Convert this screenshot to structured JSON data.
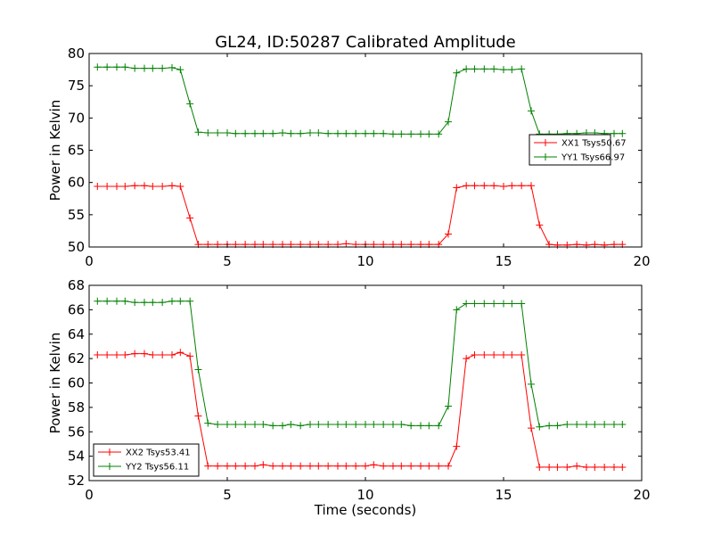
{
  "figure": {
    "title": "GL24, ID:50287 Calibrated Amplitude"
  },
  "colors": {
    "xx": "#ff0000",
    "yy": "#008000",
    "background": "#ffffff",
    "axes": "#000000"
  },
  "chart_data": [
    {
      "type": "line",
      "title": "GL24, ID:50287 Calibrated Amplitude",
      "xlabel": "",
      "ylabel": "Power in Kelvin",
      "xlim": [
        0,
        20
      ],
      "ylim": [
        50,
        80
      ],
      "xticks": [
        0,
        5,
        10,
        15,
        20
      ],
      "yticks": [
        50,
        55,
        60,
        65,
        70,
        75,
        80
      ],
      "grid": false,
      "legend_position": "center-right",
      "x": [
        0.3,
        0.65,
        1.0,
        1.3,
        1.65,
        2.0,
        2.3,
        2.65,
        3.0,
        3.3,
        3.65,
        3.95,
        4.3,
        4.65,
        5.0,
        5.3,
        5.65,
        6.0,
        6.3,
        6.65,
        7.0,
        7.3,
        7.65,
        8.0,
        8.3,
        8.65,
        9.0,
        9.3,
        9.65,
        10.0,
        10.3,
        10.65,
        11.0,
        11.3,
        11.65,
        12.0,
        12.3,
        12.65,
        13.0,
        13.3,
        13.65,
        13.95,
        14.3,
        14.65,
        15.0,
        15.3,
        15.65,
        16.0,
        16.3,
        16.65,
        16.95,
        17.3,
        17.65,
        18.0,
        18.3,
        18.65,
        19.0,
        19.3
      ],
      "series": [
        {
          "name": "XX1 Tsys50.67",
          "color": "#ff0000",
          "values": [
            59.4,
            59.4,
            59.4,
            59.4,
            59.5,
            59.5,
            59.4,
            59.4,
            59.5,
            59.4,
            54.5,
            50.4,
            50.4,
            50.4,
            50.4,
            50.4,
            50.4,
            50.4,
            50.4,
            50.4,
            50.4,
            50.4,
            50.4,
            50.4,
            50.4,
            50.4,
            50.4,
            50.5,
            50.4,
            50.4,
            50.4,
            50.4,
            50.4,
            50.4,
            50.4,
            50.4,
            50.4,
            50.4,
            52.0,
            59.2,
            59.5,
            59.5,
            59.5,
            59.5,
            59.4,
            59.5,
            59.5,
            59.5,
            53.4,
            50.4,
            50.3,
            50.3,
            50.4,
            50.3,
            50.4,
            50.3,
            50.4,
            50.4
          ]
        },
        {
          "name": "YY1 Tsys66.97",
          "color": "#008000",
          "values": [
            77.9,
            77.9,
            77.9,
            77.9,
            77.7,
            77.7,
            77.7,
            77.7,
            77.8,
            77.5,
            72.2,
            67.8,
            67.7,
            67.7,
            67.7,
            67.6,
            67.6,
            67.6,
            67.6,
            67.6,
            67.7,
            67.6,
            67.6,
            67.7,
            67.7,
            67.6,
            67.6,
            67.6,
            67.6,
            67.6,
            67.6,
            67.6,
            67.5,
            67.5,
            67.5,
            67.5,
            67.5,
            67.5,
            69.4,
            77.0,
            77.6,
            77.6,
            77.6,
            77.6,
            77.5,
            77.5,
            77.6,
            71.1,
            67.5,
            67.5,
            67.5,
            67.6,
            67.6,
            67.7,
            67.7,
            67.6,
            67.6,
            67.6
          ]
        }
      ]
    },
    {
      "type": "line",
      "title": "",
      "xlabel": "Time (seconds)",
      "ylabel": "Power in Kelvin",
      "xlim": [
        0,
        20
      ],
      "ylim": [
        52,
        68
      ],
      "xticks": [
        0,
        5,
        10,
        15,
        20
      ],
      "yticks": [
        52,
        54,
        56,
        58,
        60,
        62,
        64,
        66,
        68
      ],
      "grid": false,
      "legend_position": "lower-left",
      "x": [
        0.3,
        0.65,
        1.0,
        1.3,
        1.65,
        2.0,
        2.3,
        2.65,
        3.0,
        3.3,
        3.65,
        3.95,
        4.3,
        4.65,
        5.0,
        5.3,
        5.65,
        6.0,
        6.3,
        6.65,
        7.0,
        7.3,
        7.65,
        8.0,
        8.3,
        8.65,
        9.0,
        9.3,
        9.65,
        10.0,
        10.3,
        10.65,
        11.0,
        11.3,
        11.65,
        12.0,
        12.3,
        12.65,
        13.0,
        13.3,
        13.65,
        13.95,
        14.3,
        14.65,
        15.0,
        15.3,
        15.65,
        16.0,
        16.3,
        16.65,
        16.95,
        17.3,
        17.65,
        18.0,
        18.3,
        18.65,
        19.0,
        19.3
      ],
      "series": [
        {
          "name": "XX2 Tsys53.41",
          "color": "#ff0000",
          "values": [
            62.3,
            62.3,
            62.3,
            62.3,
            62.4,
            62.4,
            62.3,
            62.3,
            62.3,
            62.5,
            62.2,
            57.3,
            53.2,
            53.2,
            53.2,
            53.2,
            53.2,
            53.2,
            53.3,
            53.2,
            53.2,
            53.2,
            53.2,
            53.2,
            53.2,
            53.2,
            53.2,
            53.2,
            53.2,
            53.2,
            53.3,
            53.2,
            53.2,
            53.2,
            53.2,
            53.2,
            53.2,
            53.2,
            53.2,
            54.8,
            62.0,
            62.3,
            62.3,
            62.3,
            62.3,
            62.3,
            62.3,
            56.3,
            53.1,
            53.1,
            53.1,
            53.1,
            53.2,
            53.1,
            53.1,
            53.1,
            53.1,
            53.1
          ]
        },
        {
          "name": "YY2 Tsys56.11",
          "color": "#008000",
          "values": [
            66.7,
            66.7,
            66.7,
            66.7,
            66.6,
            66.6,
            66.6,
            66.6,
            66.7,
            66.7,
            66.7,
            61.1,
            56.7,
            56.6,
            56.6,
            56.6,
            56.6,
            56.6,
            56.6,
            56.5,
            56.5,
            56.6,
            56.5,
            56.6,
            56.6,
            56.6,
            56.6,
            56.6,
            56.6,
            56.6,
            56.6,
            56.6,
            56.6,
            56.6,
            56.5,
            56.5,
            56.5,
            56.5,
            58.1,
            66.0,
            66.5,
            66.5,
            66.5,
            66.5,
            66.5,
            66.5,
            66.5,
            59.9,
            56.4,
            56.5,
            56.5,
            56.6,
            56.6,
            56.6,
            56.6,
            56.6,
            56.6,
            56.6
          ]
        }
      ]
    }
  ]
}
